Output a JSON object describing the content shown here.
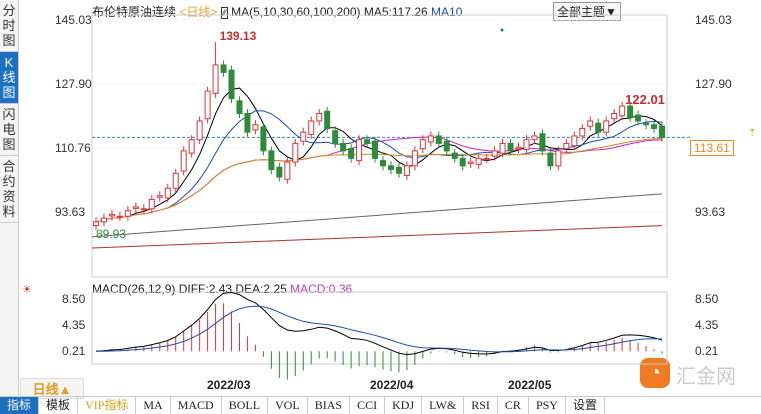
{
  "left_tabs": [
    {
      "label": "分时图",
      "selected": false
    },
    {
      "label": "K线图",
      "selected": true
    },
    {
      "label": "闪电图",
      "selected": false
    },
    {
      "label": "合约资料",
      "selected": false
    }
  ],
  "header": {
    "instrument": "布伦特原油连续",
    "period": "<日线>",
    "ma_label": "MA(5,10,30,60,100,200)",
    "ma5": "MA5:117.26",
    "ma10": "MA10",
    "topic_button": "全部主题▼"
  },
  "macd_header": {
    "label": "MACD(26,12,9)",
    "diff": "DIFF:2.43",
    "dea": "DEA:2.25",
    "macd": "MACD:0.36"
  },
  "period_selector": "日线▲",
  "watermark": "汇金网",
  "toolbar": [
    {
      "label": "指标",
      "selected": true
    },
    {
      "label": "模板"
    },
    {
      "label": "VIP指标",
      "vip": true
    },
    {
      "label": "MA"
    },
    {
      "label": "MACD"
    },
    {
      "label": "BOLL"
    },
    {
      "label": "VOL"
    },
    {
      "label": "BIAS"
    },
    {
      "label": "CCI"
    },
    {
      "label": "KDJ"
    },
    {
      "label": "LW&"
    },
    {
      "label": "RSI"
    },
    {
      "label": "CR"
    },
    {
      "label": "PSY"
    },
    {
      "label": "设置"
    }
  ],
  "colors": {
    "up": "#d9363e",
    "down": "#2e8b3a",
    "accent": "#1d6fc2",
    "price_tag": "#f08a24"
  },
  "chart_data": {
    "type": "candlestick",
    "y_ticks": [
      "145.03",
      "127.90",
      "110.76",
      "93.63"
    ],
    "ylim": [
      84,
      147
    ],
    "macd_ticks": [
      "8.50",
      "4.35",
      "0.21"
    ],
    "x_ticks": [
      "2022/03",
      "2022/04",
      "2022/05"
    ],
    "annotations": {
      "high": "139.13",
      "low": "89.93",
      "recent_high": "122.01"
    },
    "last_price": "113.61",
    "closes": [
      91,
      92,
      93,
      92.5,
      94,
      95,
      94.5,
      97,
      98,
      100,
      104,
      110,
      113,
      118,
      126,
      133,
      131,
      124,
      120,
      115,
      117,
      110,
      105,
      103,
      107,
      112,
      115,
      118,
      120,
      116,
      112,
      110,
      108,
      113,
      112,
      108,
      106,
      105,
      104,
      106,
      110,
      113,
      114,
      112,
      110,
      108,
      106,
      107,
      108,
      108,
      110,
      112,
      110,
      111,
      113,
      114,
      110,
      106,
      110,
      112,
      114,
      116,
      118,
      115,
      118,
      120,
      122,
      119,
      118,
      117,
      116,
      113.6
    ]
  }
}
